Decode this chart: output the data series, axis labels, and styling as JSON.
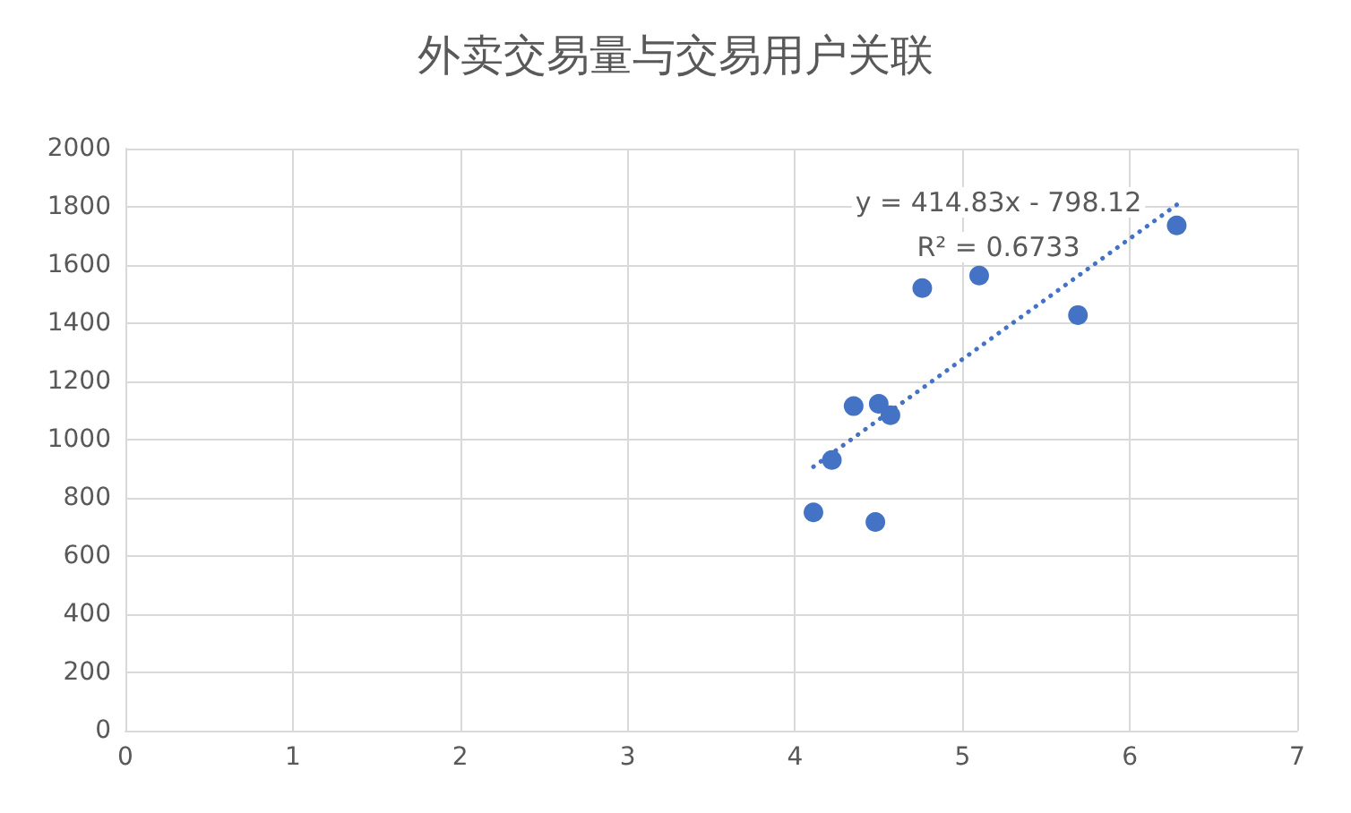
{
  "chart_data": {
    "type": "scatter",
    "title": "外卖交易量与交易用户关联",
    "series": [
      {
        "color": "#4472c4",
        "x": [
          4.11,
          4.48,
          4.22,
          4.35,
          4.5,
          4.57,
          4.76,
          5.1,
          5.69,
          6.28
        ],
        "values": [
          750,
          717,
          930,
          1115,
          1123,
          1084,
          1521,
          1564,
          1428,
          1736
        ]
      },
      {
        "type": "line",
        "color": "#4472c4",
        "marker": "none",
        "line_style": "dotted",
        "x": [
          4.11,
          6.28
        ],
        "values": [
          907,
          1807
        ]
      }
    ],
    "annotations": [
      "y = 414.83x - 798.12",
      "R² = 0.6733"
    ],
    "xlim": [
      0,
      7
    ],
    "xticks": [
      0,
      1,
      2,
      3,
      4,
      5,
      6,
      7
    ],
    "ylim": [
      0,
      2000
    ],
    "yticks": [
      0,
      200,
      400,
      600,
      800,
      1000,
      1200,
      1400,
      1600,
      1800,
      2000
    ],
    "grid": true,
    "marker": "circle"
  }
}
